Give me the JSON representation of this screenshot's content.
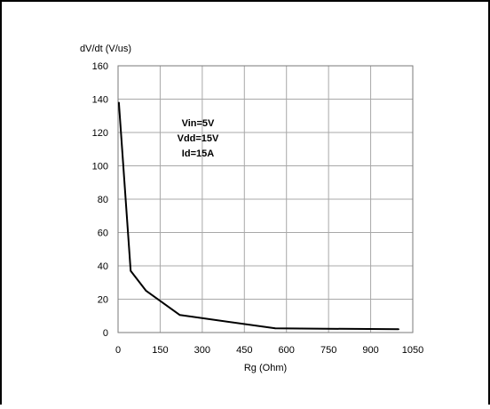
{
  "chart_data": {
    "type": "line",
    "ylabel": "dV/dt (V/us)",
    "xlabel": "Rg (Ohm)",
    "xlim": [
      0,
      1050
    ],
    "ylim": [
      0,
      160
    ],
    "x_ticks": [
      "0",
      "150",
      "300",
      "450",
      "600",
      "750",
      "900",
      "1050"
    ],
    "y_ticks": [
      "0",
      "20",
      "40",
      "60",
      "80",
      "100",
      "120",
      "140",
      "160"
    ],
    "grid": true,
    "annotations": [
      "Vin=5V",
      "Vdd=15V",
      "Id=15A"
    ],
    "series": [
      {
        "x": [
          3,
          45,
          100,
          220,
          560,
          1000
        ],
        "y": [
          138,
          37,
          25,
          10.5,
          2.5,
          2
        ]
      }
    ],
    "colors": {
      "line": "#000000",
      "grid": "#a8a8a8",
      "frame": "#000000"
    }
  }
}
